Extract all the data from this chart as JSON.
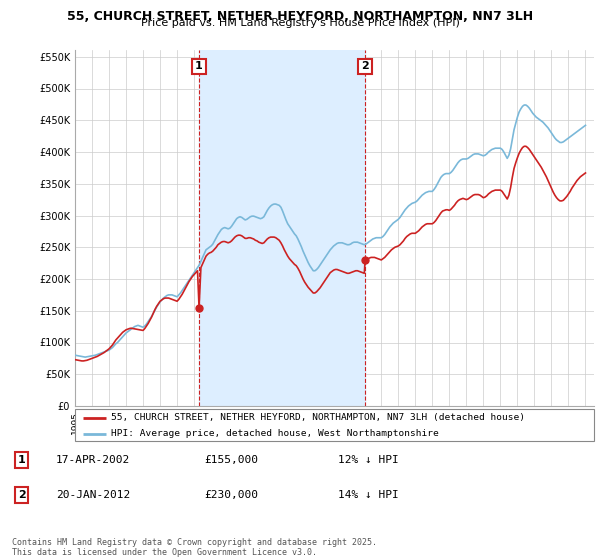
{
  "title": "55, CHURCH STREET, NETHER HEYFORD, NORTHAMPTON, NN7 3LH",
  "subtitle": "Price paid vs. HM Land Registry's House Price Index (HPI)",
  "ylim": [
    0,
    560000
  ],
  "yticks": [
    0,
    50000,
    100000,
    150000,
    200000,
    250000,
    300000,
    350000,
    400000,
    450000,
    500000,
    550000
  ],
  "ytick_labels": [
    "£0",
    "£50K",
    "£100K",
    "£150K",
    "£200K",
    "£250K",
    "£300K",
    "£350K",
    "£400K",
    "£450K",
    "£500K",
    "£550K"
  ],
  "xlim_start": 1995.0,
  "xlim_end": 2025.5,
  "xticks": [
    1995,
    1996,
    1997,
    1998,
    1999,
    2000,
    2001,
    2002,
    2003,
    2004,
    2005,
    2006,
    2007,
    2008,
    2009,
    2010,
    2011,
    2012,
    2013,
    2014,
    2015,
    2016,
    2017,
    2018,
    2019,
    2020,
    2021,
    2022,
    2023,
    2024,
    2025
  ],
  "hpi_color": "#7ab8d9",
  "price_color": "#cc2222",
  "marker_color": "#cc2222",
  "dashed_color": "#cc2222",
  "shade_color": "#ddeeff",
  "background_color": "#ffffff",
  "grid_color": "#cccccc",
  "annotation_box_color": "#cc2222",
  "sale1_x": 2002.29,
  "sale1_y": 155000,
  "sale2_x": 2012.05,
  "sale2_y": 230000,
  "sale1_date": "17-APR-2002",
  "sale1_price": "£155,000",
  "sale1_hpi": "12% ↓ HPI",
  "sale2_date": "20-JAN-2012",
  "sale2_price": "£230,000",
  "sale2_hpi": "14% ↓ HPI",
  "legend_line1": "55, CHURCH STREET, NETHER HEYFORD, NORTHAMPTON, NN7 3LH (detached house)",
  "legend_line2": "HPI: Average price, detached house, West Northamptonshire",
  "footnote": "Contains HM Land Registry data © Crown copyright and database right 2025.\nThis data is licensed under the Open Government Licence v3.0.",
  "hpi_years": [
    1995.0,
    1995.1,
    1995.2,
    1995.3,
    1995.4,
    1995.5,
    1995.6,
    1995.7,
    1995.8,
    1995.9,
    1996.0,
    1996.1,
    1996.2,
    1996.3,
    1996.4,
    1996.5,
    1996.6,
    1996.7,
    1996.8,
    1996.9,
    1997.0,
    1997.1,
    1997.2,
    1997.3,
    1997.4,
    1997.5,
    1997.6,
    1997.7,
    1997.8,
    1997.9,
    1998.0,
    1998.1,
    1998.2,
    1998.3,
    1998.4,
    1998.5,
    1998.6,
    1998.7,
    1998.8,
    1998.9,
    1999.0,
    1999.1,
    1999.2,
    1999.3,
    1999.4,
    1999.5,
    1999.6,
    1999.7,
    1999.8,
    1999.9,
    2000.0,
    2000.1,
    2000.2,
    2000.3,
    2000.4,
    2000.5,
    2000.6,
    2000.7,
    2000.8,
    2000.9,
    2001.0,
    2001.1,
    2001.2,
    2001.3,
    2001.4,
    2001.5,
    2001.6,
    2001.7,
    2001.8,
    2001.9,
    2002.0,
    2002.1,
    2002.2,
    2002.3,
    2002.4,
    2002.5,
    2002.6,
    2002.7,
    2002.8,
    2002.9,
    2003.0,
    2003.1,
    2003.2,
    2003.3,
    2003.4,
    2003.5,
    2003.6,
    2003.7,
    2003.8,
    2003.9,
    2004.0,
    2004.1,
    2004.2,
    2004.3,
    2004.4,
    2004.5,
    2004.6,
    2004.7,
    2004.8,
    2004.9,
    2005.0,
    2005.1,
    2005.2,
    2005.3,
    2005.4,
    2005.5,
    2005.6,
    2005.7,
    2005.8,
    2005.9,
    2006.0,
    2006.1,
    2006.2,
    2006.3,
    2006.4,
    2006.5,
    2006.6,
    2006.7,
    2006.8,
    2006.9,
    2007.0,
    2007.1,
    2007.2,
    2007.3,
    2007.4,
    2007.5,
    2007.6,
    2007.7,
    2007.8,
    2007.9,
    2008.0,
    2008.1,
    2008.2,
    2008.3,
    2008.4,
    2008.5,
    2008.6,
    2008.7,
    2008.8,
    2008.9,
    2009.0,
    2009.1,
    2009.2,
    2009.3,
    2009.4,
    2009.5,
    2009.6,
    2009.7,
    2009.8,
    2009.9,
    2010.0,
    2010.1,
    2010.2,
    2010.3,
    2010.4,
    2010.5,
    2010.6,
    2010.7,
    2010.8,
    2010.9,
    2011.0,
    2011.1,
    2011.2,
    2011.3,
    2011.4,
    2011.5,
    2011.6,
    2011.7,
    2011.8,
    2011.9,
    2012.0,
    2012.1,
    2012.2,
    2012.3,
    2012.4,
    2012.5,
    2012.6,
    2012.7,
    2012.8,
    2012.9,
    2013.0,
    2013.1,
    2013.2,
    2013.3,
    2013.4,
    2013.5,
    2013.6,
    2013.7,
    2013.8,
    2013.9,
    2014.0,
    2014.1,
    2014.2,
    2014.3,
    2014.4,
    2014.5,
    2014.6,
    2014.7,
    2014.8,
    2014.9,
    2015.0,
    2015.1,
    2015.2,
    2015.3,
    2015.4,
    2015.5,
    2015.6,
    2015.7,
    2015.8,
    2015.9,
    2016.0,
    2016.1,
    2016.2,
    2016.3,
    2016.4,
    2016.5,
    2016.6,
    2016.7,
    2016.8,
    2016.9,
    2017.0,
    2017.1,
    2017.2,
    2017.3,
    2017.4,
    2017.5,
    2017.6,
    2017.7,
    2017.8,
    2017.9,
    2018.0,
    2018.1,
    2018.2,
    2018.3,
    2018.4,
    2018.5,
    2018.6,
    2018.7,
    2018.8,
    2018.9,
    2019.0,
    2019.1,
    2019.2,
    2019.3,
    2019.4,
    2019.5,
    2019.6,
    2019.7,
    2019.8,
    2019.9,
    2020.0,
    2020.1,
    2020.2,
    2020.3,
    2020.4,
    2020.5,
    2020.6,
    2020.7,
    2020.8,
    2020.9,
    2021.0,
    2021.1,
    2021.2,
    2021.3,
    2021.4,
    2021.5,
    2021.6,
    2021.7,
    2021.8,
    2021.9,
    2022.0,
    2022.1,
    2022.2,
    2022.3,
    2022.4,
    2022.5,
    2022.6,
    2022.7,
    2022.8,
    2022.9,
    2023.0,
    2023.1,
    2023.2,
    2023.3,
    2023.4,
    2023.5,
    2023.6,
    2023.7,
    2023.8,
    2023.9,
    2024.0,
    2024.1,
    2024.2,
    2024.3,
    2024.4,
    2024.5,
    2024.6,
    2024.7,
    2024.8,
    2024.9,
    2025.0
  ],
  "hpi_values": [
    80000,
    79500,
    79000,
    78500,
    78000,
    77500,
    77000,
    77500,
    78000,
    78500,
    79000,
    79500,
    80000,
    81000,
    82000,
    83000,
    84000,
    85000,
    86000,
    87000,
    88000,
    90000,
    92000,
    95000,
    98000,
    100000,
    103000,
    106000,
    109000,
    112000,
    115000,
    117000,
    119000,
    121000,
    123000,
    125000,
    126000,
    127000,
    126000,
    125000,
    124000,
    126000,
    129000,
    133000,
    137000,
    141000,
    146000,
    151000,
    156000,
    160000,
    164000,
    167000,
    170000,
    172000,
    174000,
    175000,
    175000,
    175000,
    174000,
    173000,
    172000,
    175000,
    178000,
    182000,
    186000,
    190000,
    194000,
    198000,
    202000,
    206000,
    210000,
    214000,
    218000,
    222000,
    228000,
    234000,
    240000,
    246000,
    248000,
    250000,
    252000,
    255000,
    260000,
    265000,
    270000,
    274000,
    278000,
    280000,
    281000,
    280000,
    279000,
    280000,
    283000,
    287000,
    291000,
    295000,
    297000,
    298000,
    297000,
    295000,
    293000,
    294000,
    296000,
    298000,
    299000,
    299000,
    298000,
    297000,
    296000,
    295000,
    296000,
    298000,
    303000,
    308000,
    312000,
    315000,
    317000,
    318000,
    318000,
    317000,
    316000,
    313000,
    307000,
    300000,
    293000,
    287000,
    283000,
    279000,
    275000,
    271000,
    268000,
    263000,
    257000,
    251000,
    244000,
    238000,
    232000,
    226000,
    221000,
    217000,
    213000,
    213000,
    215000,
    218000,
    222000,
    226000,
    230000,
    234000,
    238000,
    242000,
    246000,
    249000,
    252000,
    254000,
    256000,
    257000,
    257000,
    257000,
    256000,
    255000,
    254000,
    254000,
    255000,
    257000,
    258000,
    258000,
    258000,
    257000,
    256000,
    255000,
    254000,
    255000,
    257000,
    259000,
    261000,
    263000,
    264000,
    265000,
    265000,
    265000,
    265000,
    267000,
    270000,
    274000,
    278000,
    282000,
    285000,
    288000,
    290000,
    292000,
    294000,
    297000,
    301000,
    305000,
    309000,
    312000,
    315000,
    317000,
    319000,
    320000,
    321000,
    323000,
    326000,
    329000,
    332000,
    334000,
    336000,
    337000,
    338000,
    338000,
    338000,
    341000,
    345000,
    350000,
    355000,
    360000,
    363000,
    365000,
    366000,
    366000,
    366000,
    368000,
    371000,
    375000,
    379000,
    383000,
    386000,
    388000,
    389000,
    389000,
    389000,
    390000,
    392000,
    394000,
    396000,
    397000,
    397000,
    397000,
    396000,
    395000,
    394000,
    395000,
    397000,
    400000,
    402000,
    404000,
    405000,
    406000,
    406000,
    406000,
    406000,
    404000,
    400000,
    395000,
    390000,
    395000,
    405000,
    420000,
    435000,
    445000,
    455000,
    463000,
    468000,
    472000,
    474000,
    474000,
    472000,
    469000,
    465000,
    461000,
    458000,
    455000,
    453000,
    451000,
    449000,
    447000,
    444000,
    441000,
    438000,
    434000,
    430000,
    426000,
    422000,
    419000,
    417000,
    415000,
    415000,
    416000,
    418000,
    420000,
    422000,
    424000,
    426000,
    428000,
    430000,
    432000,
    434000,
    436000,
    438000,
    440000,
    442000
  ],
  "price_years": [
    1995.0,
    1995.1,
    1995.2,
    1995.3,
    1995.4,
    1995.5,
    1995.6,
    1995.7,
    1995.8,
    1995.9,
    1996.0,
    1996.1,
    1996.2,
    1996.3,
    1996.4,
    1996.5,
    1996.6,
    1996.7,
    1996.8,
    1996.9,
    1997.0,
    1997.1,
    1997.2,
    1997.3,
    1997.4,
    1997.5,
    1997.6,
    1997.7,
    1997.8,
    1997.9,
    1998.0,
    1998.1,
    1998.2,
    1998.3,
    1998.4,
    1998.5,
    1998.6,
    1998.7,
    1998.8,
    1998.9,
    1999.0,
    1999.1,
    1999.2,
    1999.3,
    1999.4,
    1999.5,
    1999.6,
    1999.7,
    1999.8,
    1999.9,
    2000.0,
    2000.1,
    2000.2,
    2000.3,
    2000.4,
    2000.5,
    2000.6,
    2000.7,
    2000.8,
    2000.9,
    2001.0,
    2001.1,
    2001.2,
    2001.3,
    2001.4,
    2001.5,
    2001.6,
    2001.7,
    2001.8,
    2001.9,
    2002.0,
    2002.1,
    2002.2,
    2002.29,
    2002.4,
    2002.5,
    2002.6,
    2002.7,
    2002.8,
    2002.9,
    2003.0,
    2003.1,
    2003.2,
    2003.3,
    2003.4,
    2003.5,
    2003.6,
    2003.7,
    2003.8,
    2003.9,
    2004.0,
    2004.1,
    2004.2,
    2004.3,
    2004.4,
    2004.5,
    2004.6,
    2004.7,
    2004.8,
    2004.9,
    2005.0,
    2005.1,
    2005.2,
    2005.3,
    2005.4,
    2005.5,
    2005.6,
    2005.7,
    2005.8,
    2005.9,
    2006.0,
    2006.1,
    2006.2,
    2006.3,
    2006.4,
    2006.5,
    2006.6,
    2006.7,
    2006.8,
    2006.9,
    2007.0,
    2007.1,
    2007.2,
    2007.3,
    2007.4,
    2007.5,
    2007.6,
    2007.7,
    2007.8,
    2007.9,
    2008.0,
    2008.1,
    2008.2,
    2008.3,
    2008.4,
    2008.5,
    2008.6,
    2008.7,
    2008.8,
    2008.9,
    2009.0,
    2009.1,
    2009.2,
    2009.3,
    2009.4,
    2009.5,
    2009.6,
    2009.7,
    2009.8,
    2009.9,
    2010.0,
    2010.1,
    2010.2,
    2010.3,
    2010.4,
    2010.5,
    2010.6,
    2010.7,
    2010.8,
    2010.9,
    2011.0,
    2011.1,
    2011.2,
    2011.3,
    2011.4,
    2011.5,
    2011.6,
    2011.7,
    2011.8,
    2011.9,
    2012.0,
    2012.05,
    2012.2,
    2012.3,
    2012.4,
    2012.5,
    2012.6,
    2012.7,
    2012.8,
    2012.9,
    2013.0,
    2013.1,
    2013.2,
    2013.3,
    2013.4,
    2013.5,
    2013.6,
    2013.7,
    2013.8,
    2013.9,
    2014.0,
    2014.1,
    2014.2,
    2014.3,
    2014.4,
    2014.5,
    2014.6,
    2014.7,
    2014.8,
    2014.9,
    2015.0,
    2015.1,
    2015.2,
    2015.3,
    2015.4,
    2015.5,
    2015.6,
    2015.7,
    2015.8,
    2015.9,
    2016.0,
    2016.1,
    2016.2,
    2016.3,
    2016.4,
    2016.5,
    2016.6,
    2016.7,
    2016.8,
    2016.9,
    2017.0,
    2017.1,
    2017.2,
    2017.3,
    2017.4,
    2017.5,
    2017.6,
    2017.7,
    2017.8,
    2017.9,
    2018.0,
    2018.1,
    2018.2,
    2018.3,
    2018.4,
    2018.5,
    2018.6,
    2018.7,
    2018.8,
    2018.9,
    2019.0,
    2019.1,
    2019.2,
    2019.3,
    2019.4,
    2019.5,
    2019.6,
    2019.7,
    2019.8,
    2019.9,
    2020.0,
    2020.1,
    2020.2,
    2020.3,
    2020.4,
    2020.5,
    2020.6,
    2020.7,
    2020.8,
    2020.9,
    2021.0,
    2021.1,
    2021.2,
    2021.3,
    2021.4,
    2021.5,
    2021.6,
    2021.7,
    2021.8,
    2021.9,
    2022.0,
    2022.1,
    2022.2,
    2022.3,
    2022.4,
    2022.5,
    2022.6,
    2022.7,
    2022.8,
    2022.9,
    2023.0,
    2023.1,
    2023.2,
    2023.3,
    2023.4,
    2023.5,
    2023.6,
    2023.7,
    2023.8,
    2023.9,
    2024.0,
    2024.1,
    2024.2,
    2024.3,
    2024.4,
    2024.5,
    2024.6,
    2024.7,
    2024.8,
    2024.9,
    2025.0
  ],
  "price_values": [
    73000,
    72500,
    72000,
    71500,
    71000,
    71000,
    71500,
    72000,
    73000,
    74000,
    75000,
    76000,
    77000,
    78000,
    79500,
    81000,
    82500,
    84000,
    86000,
    88000,
    90000,
    93000,
    96000,
    100000,
    104000,
    107000,
    110000,
    113000,
    116000,
    118000,
    120000,
    121000,
    122000,
    122500,
    122000,
    121500,
    121000,
    120500,
    120000,
    119500,
    119000,
    122000,
    126000,
    130000,
    135000,
    140000,
    146000,
    152000,
    157000,
    161000,
    165000,
    167000,
    169000,
    170000,
    170000,
    170000,
    169000,
    168000,
    167000,
    166000,
    165000,
    168000,
    172000,
    176000,
    181000,
    186000,
    191000,
    196000,
    200000,
    204000,
    207000,
    210000,
    213000,
    155000,
    218000,
    224000,
    230000,
    236000,
    239000,
    241000,
    242000,
    244000,
    247000,
    250000,
    254000,
    256000,
    258000,
    259000,
    259000,
    258000,
    257000,
    258000,
    260000,
    263000,
    266000,
    268000,
    269000,
    269000,
    268000,
    266000,
    264000,
    264000,
    265000,
    265000,
    264000,
    263000,
    261000,
    260000,
    258000,
    257000,
    256000,
    257000,
    260000,
    263000,
    265000,
    266000,
    266000,
    266000,
    265000,
    263000,
    261000,
    257000,
    252000,
    246000,
    241000,
    236000,
    232000,
    229000,
    226000,
    223000,
    221000,
    217000,
    212000,
    206000,
    200000,
    195000,
    191000,
    187000,
    184000,
    181000,
    178000,
    178000,
    180000,
    183000,
    186000,
    190000,
    194000,
    198000,
    202000,
    206000,
    210000,
    212000,
    214000,
    215000,
    215000,
    214000,
    213000,
    212000,
    211000,
    210000,
    209000,
    209000,
    210000,
    211000,
    212000,
    213000,
    213000,
    212000,
    211000,
    210000,
    209000,
    230000,
    232000,
    233000,
    234000,
    234000,
    234000,
    233000,
    232000,
    231000,
    230000,
    232000,
    234000,
    237000,
    240000,
    243000,
    246000,
    248000,
    250000,
    251000,
    252000,
    254000,
    257000,
    260000,
    264000,
    267000,
    269000,
    271000,
    272000,
    272000,
    272000,
    274000,
    276000,
    279000,
    282000,
    284000,
    286000,
    287000,
    287000,
    287000,
    287000,
    289000,
    292000,
    296000,
    300000,
    304000,
    307000,
    308000,
    309000,
    309000,
    308000,
    310000,
    313000,
    316000,
    320000,
    323000,
    325000,
    326000,
    327000,
    326000,
    325000,
    326000,
    328000,
    330000,
    332000,
    333000,
    333000,
    333000,
    332000,
    330000,
    328000,
    329000,
    331000,
    334000,
    336000,
    338000,
    339000,
    340000,
    340000,
    340000,
    340000,
    338000,
    334000,
    330000,
    326000,
    332000,
    344000,
    360000,
    374000,
    383000,
    391000,
    398000,
    403000,
    407000,
    409000,
    409000,
    407000,
    404000,
    400000,
    396000,
    392000,
    388000,
    384000,
    380000,
    376000,
    371000,
    366000,
    361000,
    355000,
    349000,
    343000,
    337000,
    332000,
    328000,
    325000,
    323000,
    323000,
    324000,
    327000,
    330000,
    334000,
    338000,
    343000,
    347000,
    351000,
    355000,
    358000,
    361000,
    363000,
    365000,
    367000
  ]
}
